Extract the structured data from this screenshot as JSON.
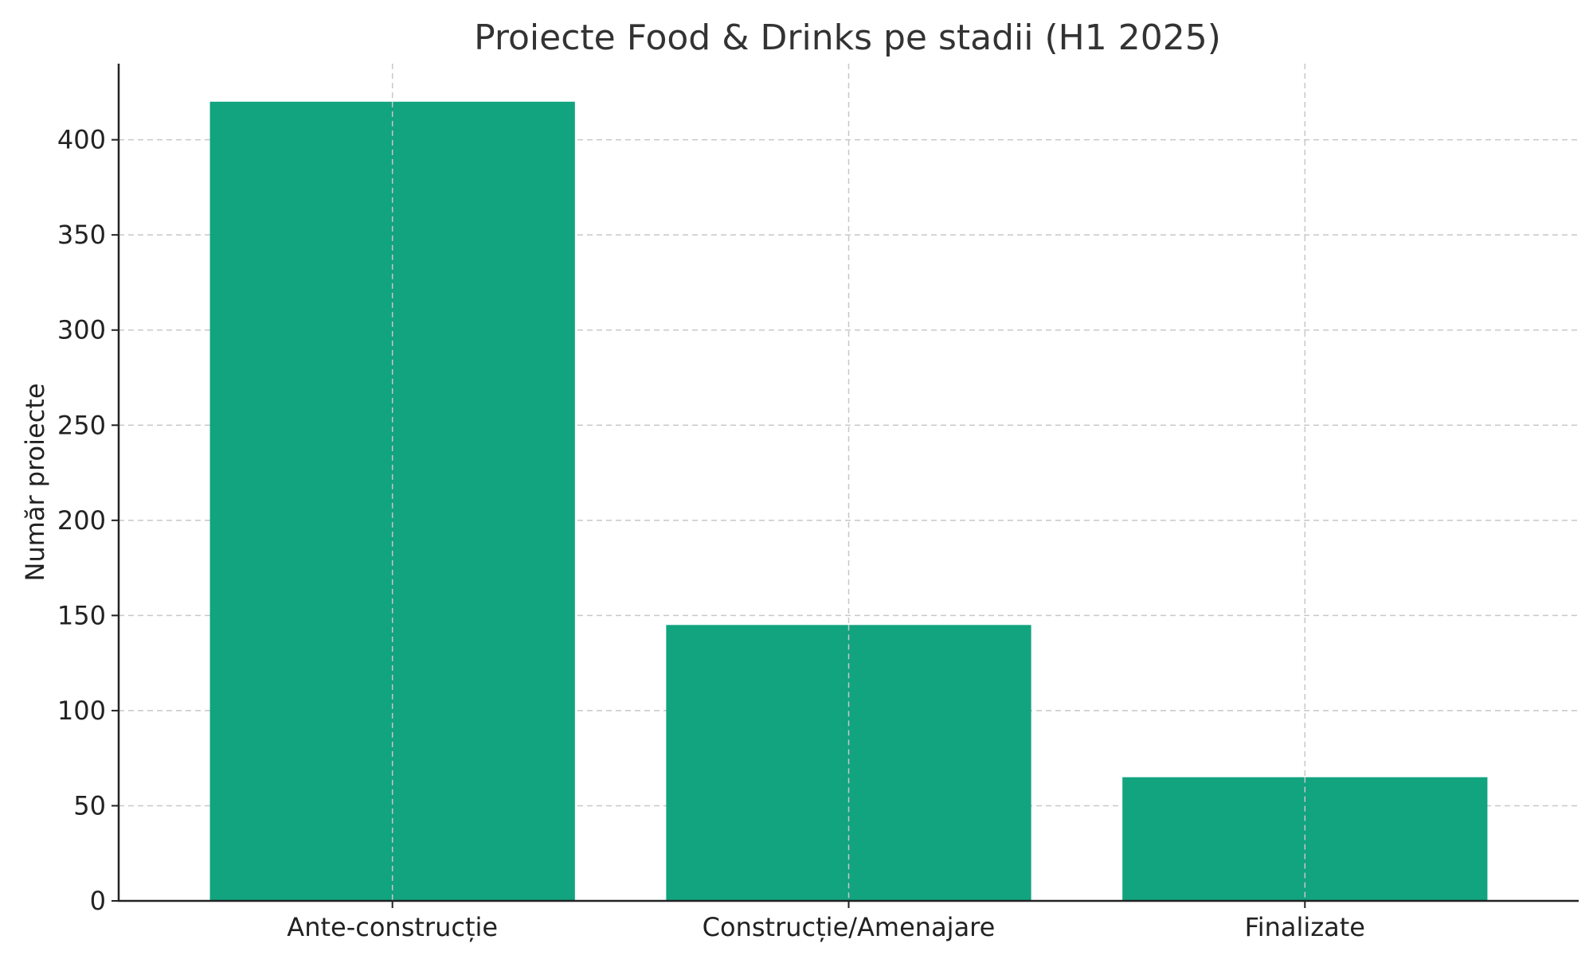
{
  "chart_data": {
    "type": "bar",
    "title": "Proiecte Food & Drinks pe stadii (H1 2025)",
    "xlabel": "",
    "ylabel": "Număr proiecte",
    "categories": [
      "Ante-construcție",
      "Construcție/Amenajare",
      "Finalizate"
    ],
    "values": [
      420,
      145,
      65
    ],
    "ylim": [
      0,
      440
    ],
    "yticks": [
      0,
      50,
      100,
      150,
      200,
      250,
      300,
      350,
      400
    ],
    "grid": true,
    "bar_color": "#12a37f"
  }
}
